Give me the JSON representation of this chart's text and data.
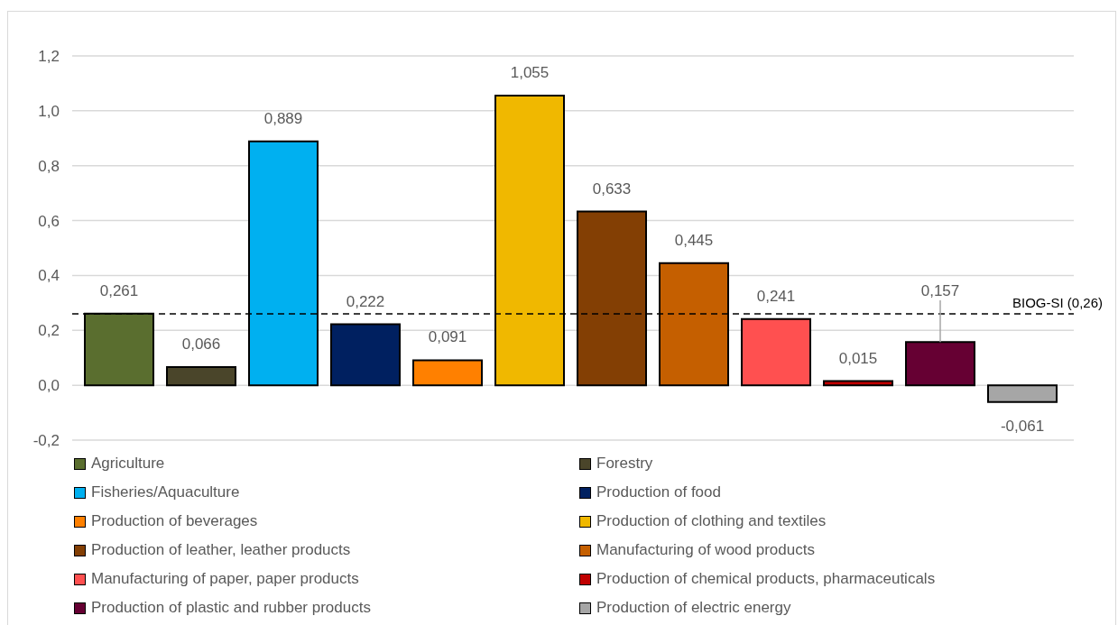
{
  "chart_data": {
    "type": "bar",
    "categories": [
      null
    ],
    "series": [
      {
        "name": "Agriculture",
        "color": "#5a6e2f",
        "values": [
          0.261
        ],
        "value_labels": [
          "0,261"
        ]
      },
      {
        "name": "Forestry",
        "color": "#4a452a",
        "values": [
          0.066
        ],
        "value_labels": [
          "0,066"
        ]
      },
      {
        "name": "Fisheries/Aquaculture",
        "color": "#00b0f0",
        "values": [
          0.889
        ],
        "value_labels": [
          "0,889"
        ]
      },
      {
        "name": "Production of food",
        "color": "#002060",
        "values": [
          0.222
        ],
        "value_labels": [
          "0,222"
        ]
      },
      {
        "name": "Production of beverages",
        "color": "#ff8000",
        "values": [
          0.091
        ],
        "value_labels": [
          "0,091"
        ]
      },
      {
        "name": "Production of clothing and textiles",
        "color": "#f0b800",
        "values": [
          1.055
        ],
        "value_labels": [
          "1,055"
        ]
      },
      {
        "name": "Production of leather, leather products",
        "color": "#833f04",
        "values": [
          0.633
        ],
        "value_labels": [
          "0,633"
        ]
      },
      {
        "name": "Manufacturing of wood products",
        "color": "#c55f00",
        "values": [
          0.445
        ],
        "value_labels": [
          "0,445"
        ]
      },
      {
        "name": "Manufacturing of paper, paper products",
        "color": "#ff5050",
        "values": [
          0.241
        ],
        "value_labels": [
          "0,241"
        ]
      },
      {
        "name": "Production of chemical products, pharmaceuticals",
        "color": "#c00000",
        "values": [
          0.015
        ],
        "value_labels": [
          "0,015"
        ]
      },
      {
        "name": "Production of plastic and rubber products",
        "color": "#660033",
        "values": [
          0.157
        ],
        "value_labels": [
          "0,157"
        ]
      },
      {
        "name": "Production of electric energy",
        "color": "#a6a6a6",
        "values": [
          -0.061
        ],
        "value_labels": [
          "-0,061"
        ]
      }
    ],
    "ylim": [
      -0.2,
      1.2
    ],
    "yticks": [
      {
        "value": -0.2,
        "label": "-0,2"
      },
      {
        "value": 0,
        "label": "0,0"
      },
      {
        "value": 0.2,
        "label": "0,2"
      },
      {
        "value": 0.4,
        "label": "0,4"
      },
      {
        "value": 0.6,
        "label": "0,6"
      },
      {
        "value": 0.8,
        "label": "0,8"
      },
      {
        "value": 1.0,
        "label": "1,0"
      },
      {
        "value": 1.2,
        "label": "1,2"
      }
    ],
    "grid": "y",
    "legend": "bottom",
    "ref_lines": [
      {
        "axis": "y",
        "value": 0.26,
        "label": "BIOG-SI (0,26)",
        "color": "#000000",
        "line_style": "dashed"
      }
    ]
  }
}
